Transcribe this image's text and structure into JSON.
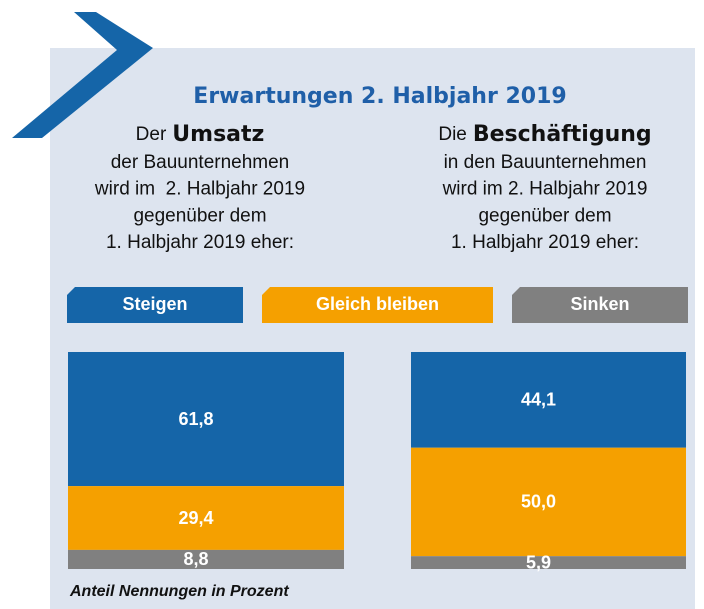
{
  "chart_data": {
    "type": "stacked_bar",
    "title": "Erwartungen 2. Halbjahr 2019",
    "categories": [
      "Umsatz",
      "Beschäftigung"
    ],
    "category_prefixes": [
      "Der",
      "Die"
    ],
    "category_lines": [
      [
        "der Bauunternehmen",
        "wird im  2. Halbjahr 2019",
        "gegenüber dem",
        "1. Halbjahr 2019 eher:"
      ],
      [
        "in den Bauunternehmen",
        "wird im 2. Halbjahr 2019",
        "gegenüber dem",
        "1. Halbjahr 2019 eher:"
      ]
    ],
    "series": [
      {
        "name": "Steigen",
        "color": "#1565a8",
        "values": [
          61.8,
          44.1
        ],
        "value_labels": [
          "61,8",
          "44,1"
        ]
      },
      {
        "name": "Gleich bleiben",
        "color": "#f5a000",
        "values": [
          29.4,
          50.0
        ],
        "value_labels": [
          "29,4",
          "50,0"
        ]
      },
      {
        "name": "Sinken",
        "color": "#808080",
        "values": [
          8.8,
          5.9
        ],
        "value_labels": [
          "8,8",
          "5,9"
        ]
      }
    ],
    "note": "Anteil Nennungen in Prozent"
  }
}
